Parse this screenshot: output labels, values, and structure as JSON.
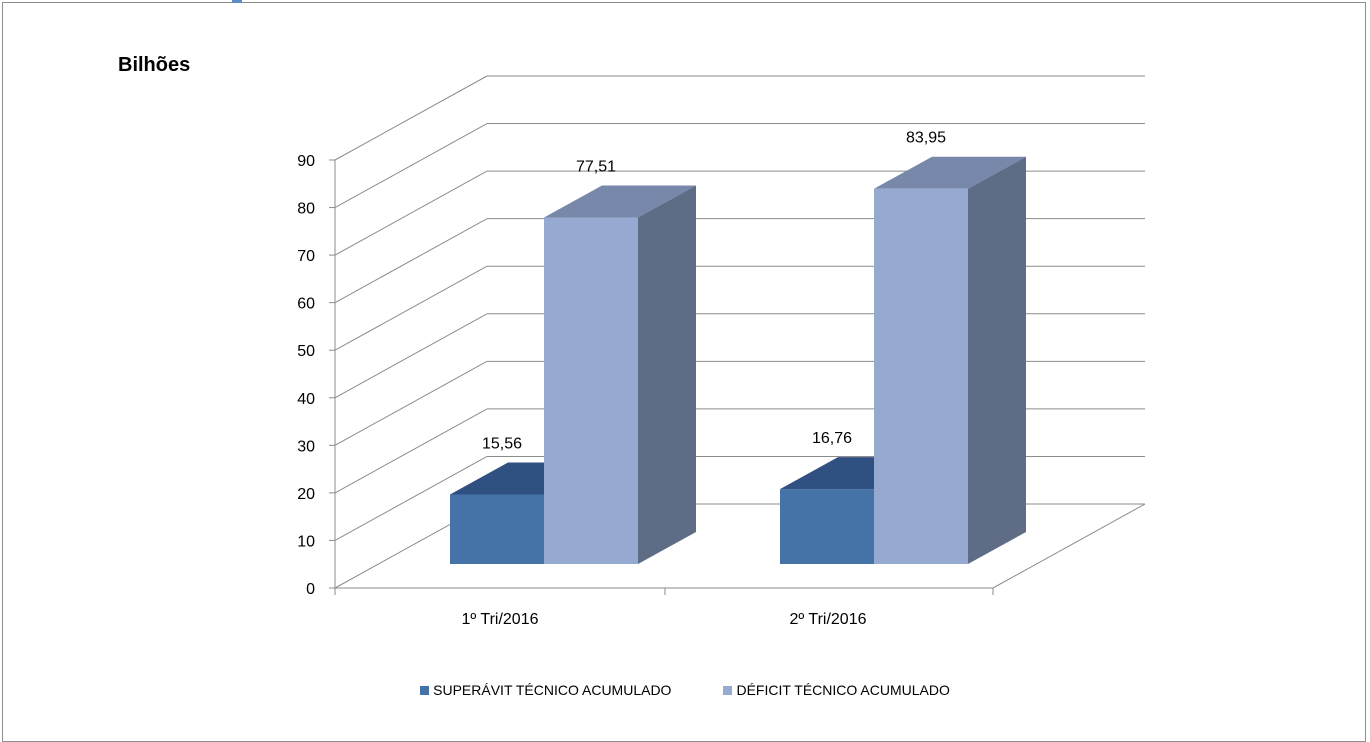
{
  "chart_data": {
    "type": "bar",
    "unit_label": "Bilhões",
    "categories": [
      "1º Tri/2016",
      "2º Tri/2016"
    ],
    "series": [
      {
        "name": "SUPERÁVIT TÉCNICO ACUMULADO",
        "values": [
          15.56,
          16.76
        ],
        "labels": [
          "15,56",
          "16,76"
        ],
        "color": "#4572a7",
        "top_color": "#2f5080",
        "side_color": "#34507a"
      },
      {
        "name": "DÉFICIT TÉCNICO ACUMULADO",
        "values": [
          77.51,
          83.95
        ],
        "labels": [
          "77,51",
          "83,95"
        ],
        "color": "#95a9d1",
        "top_color": "#7888aa",
        "side_color": "#5e6c85"
      }
    ],
    "yticks": [
      0,
      10,
      20,
      30,
      40,
      50,
      60,
      70,
      80,
      90
    ],
    "ylim": [
      0,
      90
    ],
    "grid": true,
    "legend_position": "bottom",
    "three_d": true
  }
}
